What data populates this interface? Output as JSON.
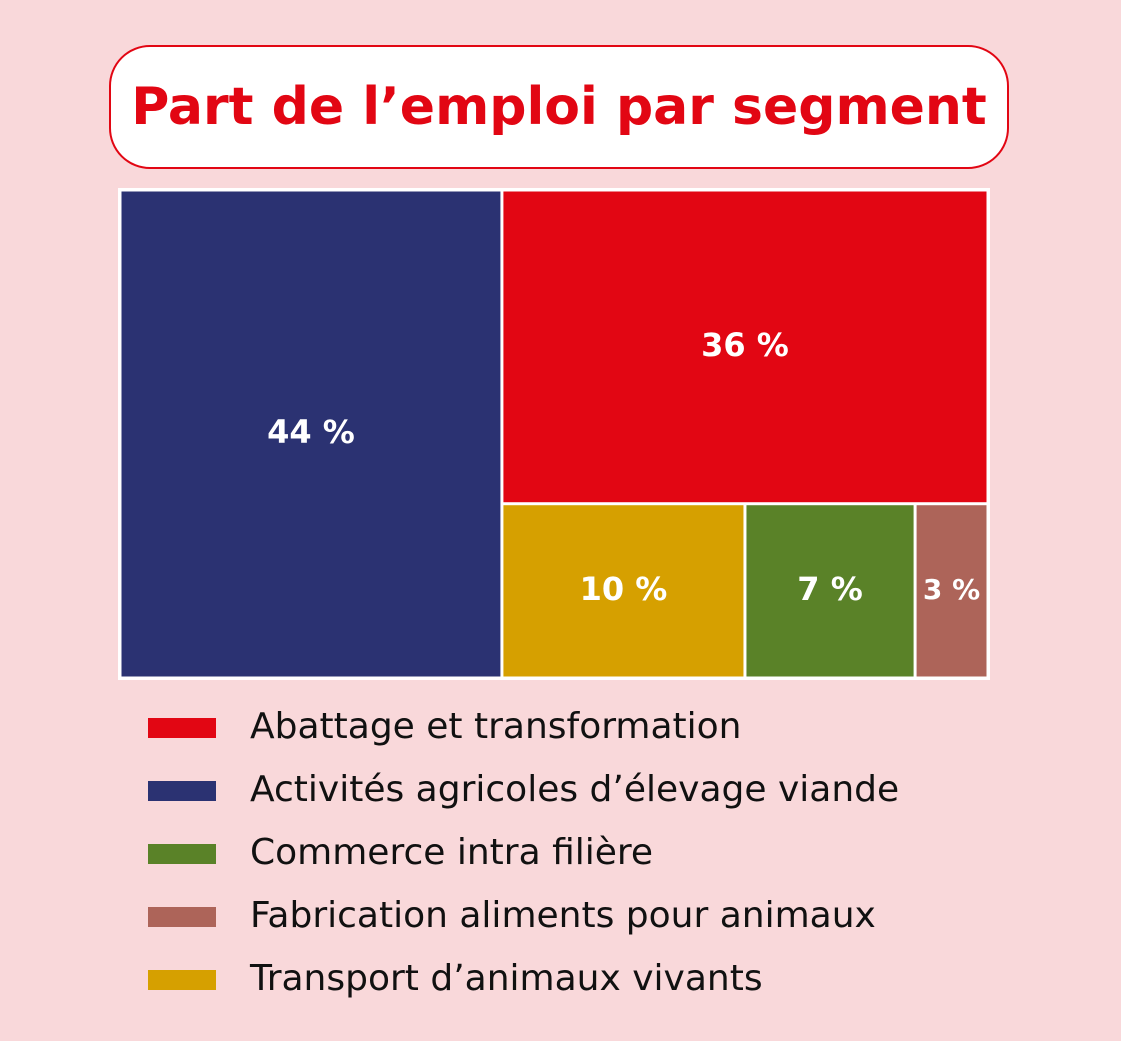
{
  "chart_data": {
    "type": "treemap",
    "title": "Part de l’emploi par segment",
    "categories": [
      "Abattage et transformation",
      "Activités agricoles d’élevage viande",
      "Commerce intra filière",
      "Fabrication aliments pour animaux",
      "Transport d’animaux vivants"
    ],
    "values": [
      36,
      44,
      7,
      3,
      10
    ],
    "value_labels": [
      "36 %",
      "44 %",
      "7 %",
      "3 %",
      "10 %"
    ],
    "colors": [
      "#e20613",
      "#2b3272",
      "#5a8228",
      "#ad6459",
      "#d6a000"
    ]
  }
}
